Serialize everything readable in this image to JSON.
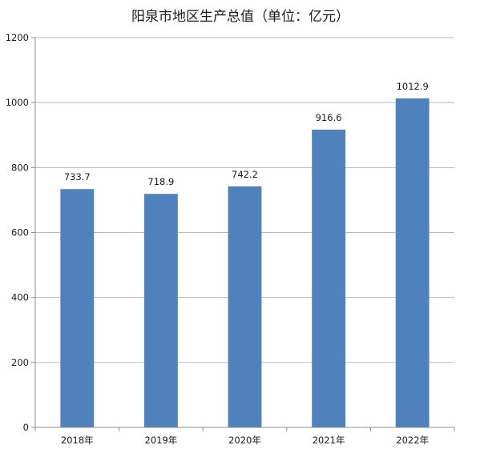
{
  "chart_data": {
    "type": "bar",
    "title": "阳泉市地区生产总值（单位：亿元）",
    "xlabel": "",
    "ylabel": "",
    "categories": [
      "2018年",
      "2019年",
      "2020年",
      "2021年",
      "2022年"
    ],
    "values": [
      733.7,
      718.9,
      742.2,
      916.6,
      1012.9
    ],
    "data_labels": [
      "733.7",
      "718.9",
      "742.2",
      "916.6",
      "1012.9"
    ],
    "ylim": [
      0,
      1200
    ],
    "yticks": [
      0,
      200,
      400,
      600,
      800,
      1000,
      1200
    ],
    "grid": true,
    "legend": "none",
    "bar_color": "#4f81bd"
  }
}
